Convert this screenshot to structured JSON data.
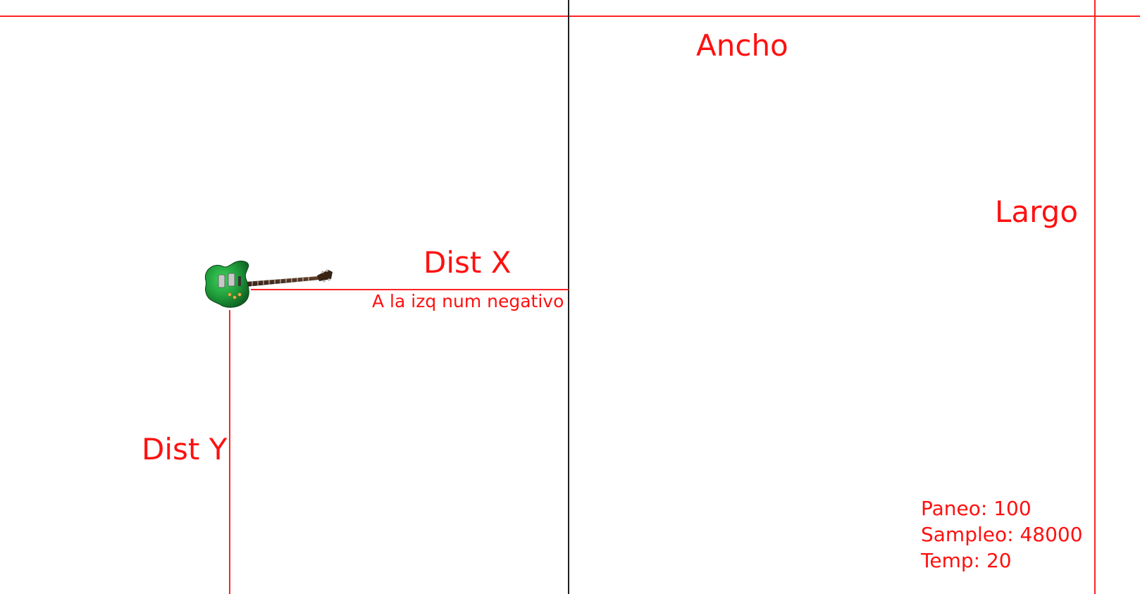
{
  "labels": {
    "ancho": "Ancho",
    "largo": "Largo",
    "dist_x": "Dist X",
    "dist_y": "Dist Y",
    "dist_x_note": "A la izq num negativo"
  },
  "info": {
    "paneo": "Paneo: 100",
    "sampleo": "Sampleo: 48000",
    "temp": "Temp: 20"
  },
  "colors": {
    "guide": "#ff2323",
    "center_axis": "#1f1f1f",
    "text": "#ff1010",
    "guitar_body": "#1f9a3a"
  },
  "icons": {
    "source": "electric-guitar-icon"
  }
}
